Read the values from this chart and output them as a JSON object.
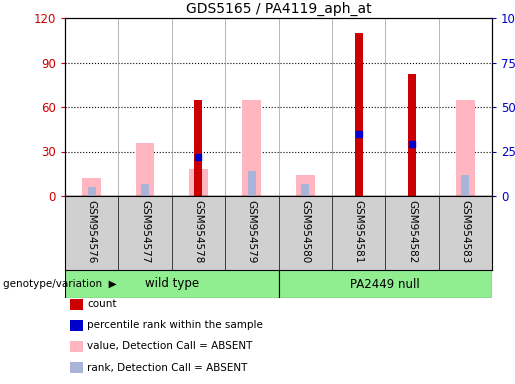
{
  "title": "GDS5165 / PA4119_aph_at",
  "samples": [
    "GSM954576",
    "GSM954577",
    "GSM954578",
    "GSM954579",
    "GSM954580",
    "GSM954581",
    "GSM954582",
    "GSM954583"
  ],
  "count_values": [
    0,
    0,
    65,
    0,
    0,
    110,
    82,
    0
  ],
  "percentile_rank_values": [
    0,
    0,
    22,
    0,
    0,
    35,
    29,
    0
  ],
  "absent_value_values": [
    10,
    30,
    15,
    54,
    12,
    0,
    0,
    54
  ],
  "absent_rank_values": [
    5,
    7,
    0,
    14,
    7,
    0,
    0,
    12
  ],
  "group1_name": "wild type",
  "group1_count": 4,
  "group2_name": "PA2449 null",
  "group2_count": 4,
  "group_color": "#90EE90",
  "left_ylim": [
    0,
    120
  ],
  "right_ylim": [
    0,
    100
  ],
  "left_ticks": [
    0,
    30,
    60,
    90,
    120
  ],
  "right_ticks": [
    0,
    25,
    50,
    75,
    100
  ],
  "right_tick_labels": [
    "0",
    "25",
    "50",
    "75",
    "100%"
  ],
  "count_color": "#cc0000",
  "percentile_color": "#0000cc",
  "absent_value_color": "#ffb6c1",
  "absent_rank_color": "#aab4d8",
  "sample_bg_color": "#d0d0d0",
  "legend_items": [
    {
      "label": "count",
      "color": "#cc0000"
    },
    {
      "label": "percentile rank within the sample",
      "color": "#0000cc"
    },
    {
      "label": "value, Detection Call = ABSENT",
      "color": "#ffb6c1"
    },
    {
      "label": "rank, Detection Call = ABSENT",
      "color": "#aab4d8"
    }
  ]
}
